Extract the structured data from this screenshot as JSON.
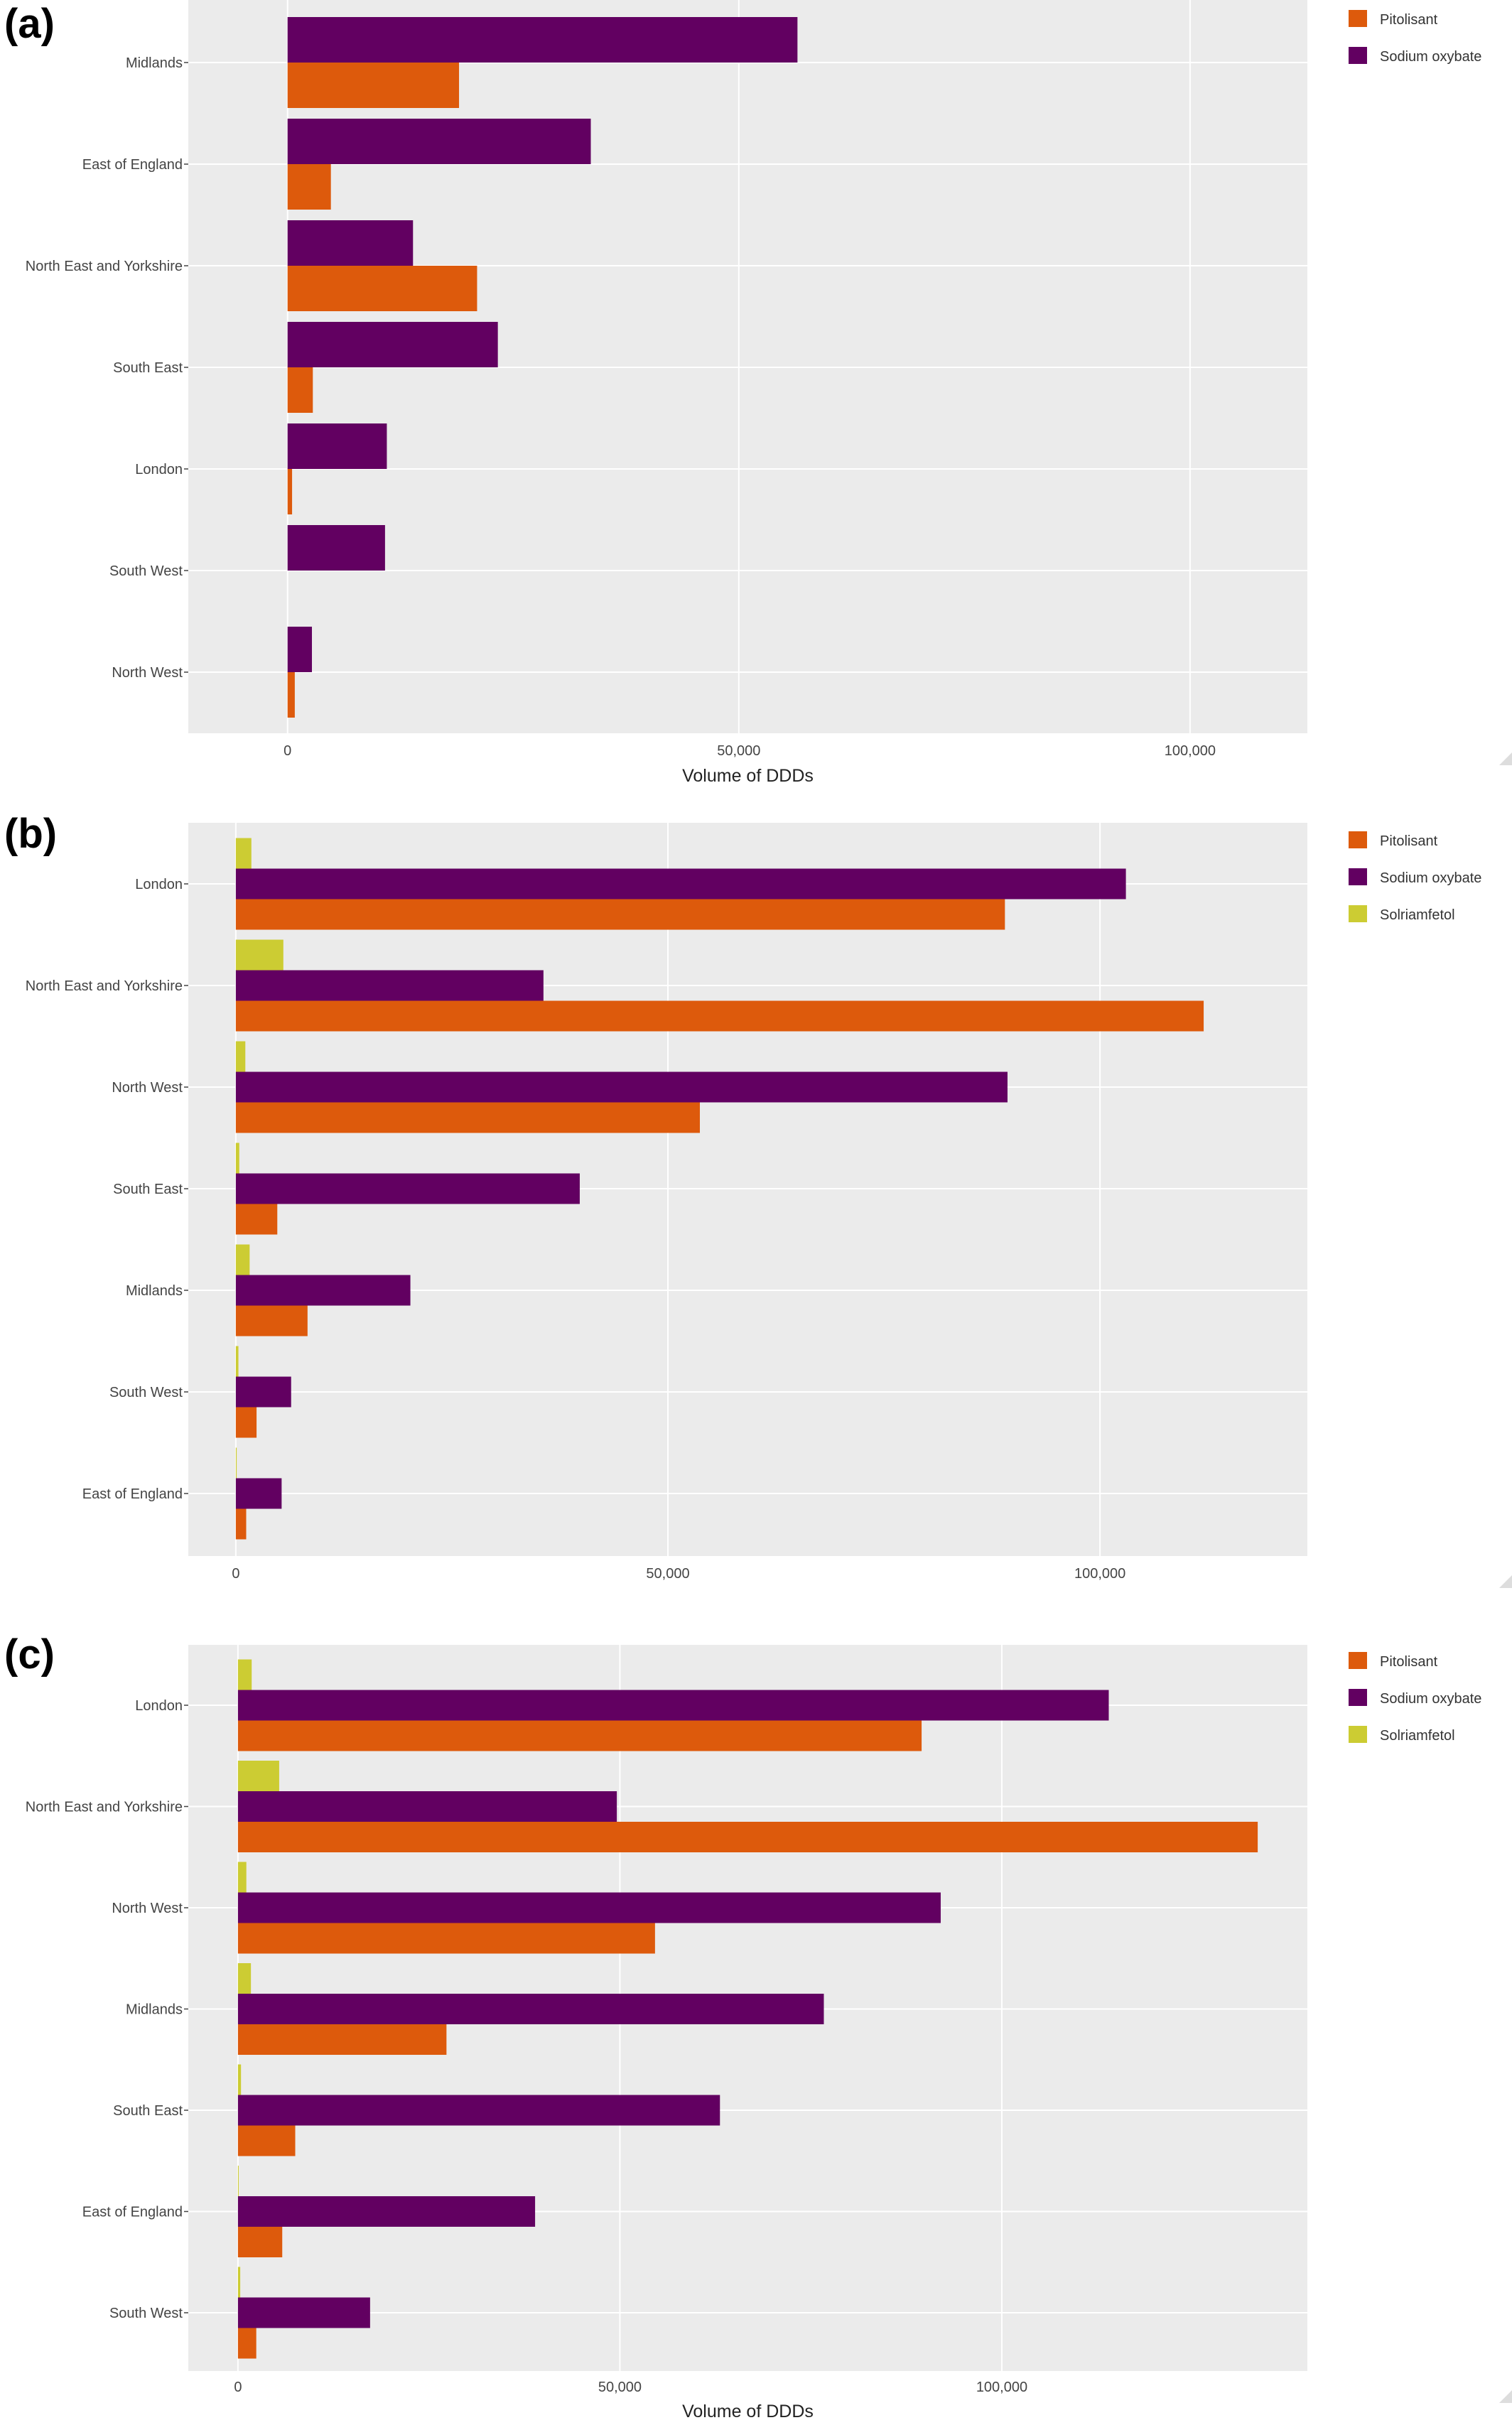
{
  "colors": {
    "Pitolisant": "#dd5a0c",
    "Sodium oxybate": "#620061",
    "Solriamfetol": "#cccc33",
    "plot_bg": "#ebebeb",
    "grid": "#ffffff"
  },
  "chart_data": [
    {
      "type": "bar",
      "orientation": "horizontal",
      "panel_label": "(a)",
      "xlabel": "Volume of DDDs",
      "ylabel": "",
      "xlim": [
        -11000,
        113000
      ],
      "xticks": [
        0,
        50000,
        100000
      ],
      "xtick_labels": [
        "0",
        "50,000",
        "100,000"
      ],
      "grid": true,
      "legend_position": "top-right",
      "categories": [
        "Midlands",
        "East of England",
        "North East and Yorkshire",
        "South East",
        "London",
        "South West",
        "North West"
      ],
      "series": [
        {
          "name": "Pitolisant",
          "values": [
            19000,
            4800,
            21000,
            2800,
            500,
            0,
            800
          ]
        },
        {
          "name": "Sodium oxybate",
          "values": [
            56500,
            33600,
            13900,
            23300,
            11000,
            10800,
            2700
          ]
        }
      ]
    },
    {
      "type": "bar",
      "orientation": "horizontal",
      "panel_label": "(b)",
      "xlabel": "",
      "ylabel": "",
      "xlim": [
        -5500,
        124000
      ],
      "xticks": [
        0,
        50000,
        100000
      ],
      "xtick_labels": [
        "0",
        "50,000",
        "100,000"
      ],
      "grid": true,
      "legend_position": "top-right",
      "categories": [
        "London",
        "North East and Yorkshire",
        "North West",
        "South East",
        "Midlands",
        "South West",
        "East of England"
      ],
      "series": [
        {
          "name": "Pitolisant",
          "values": [
            89000,
            112000,
            53700,
            4800,
            8300,
            2400,
            1200
          ]
        },
        {
          "name": "Sodium oxybate",
          "values": [
            103000,
            35600,
            89300,
            39800,
            20200,
            6400,
            5300
          ]
        },
        {
          "name": "Solriamfetol",
          "values": [
            1800,
            5500,
            1100,
            400,
            1600,
            300,
            100
          ]
        }
      ]
    },
    {
      "type": "bar",
      "orientation": "horizontal",
      "panel_label": "(c)",
      "xlabel": "Volume of DDDs",
      "ylabel": "",
      "xlim": [
        -6500,
        140000
      ],
      "xticks": [
        0,
        50000,
        100000
      ],
      "xtick_labels": [
        "0",
        "50,000",
        "100,000"
      ],
      "grid": true,
      "legend_position": "top-right",
      "categories": [
        "London",
        "North East and Yorkshire",
        "North West",
        "Midlands",
        "South East",
        "East of England",
        "South West"
      ],
      "series": [
        {
          "name": "Pitolisant",
          "values": [
            89500,
            133500,
            54600,
            27300,
            7500,
            5800,
            2400
          ]
        },
        {
          "name": "Sodium oxybate",
          "values": [
            114000,
            49600,
            92000,
            76700,
            63100,
            38900,
            17300
          ]
        },
        {
          "name": "Solriamfetol",
          "values": [
            1800,
            5400,
            1100,
            1700,
            400,
            100,
            300
          ]
        }
      ]
    }
  ]
}
